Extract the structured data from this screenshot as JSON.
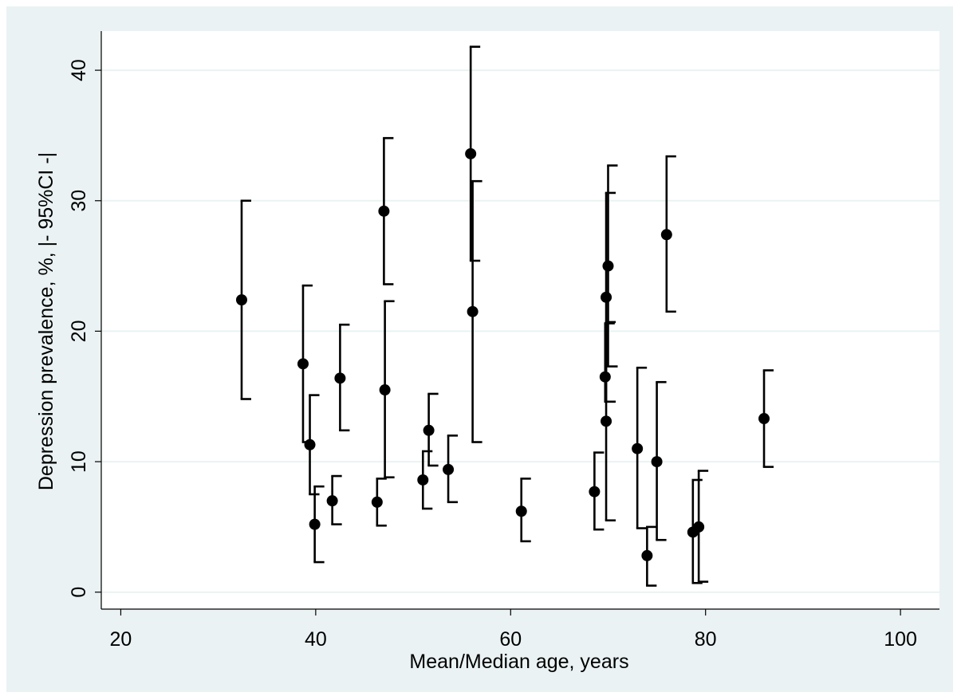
{
  "chart_data": {
    "type": "scatter",
    "title": "",
    "xlabel": "Mean/Median age, years",
    "ylabel": "Depression prevalence, %, |- 95%CI -|",
    "xlim": [
      18,
      104
    ],
    "ylim": [
      -1.3,
      43
    ],
    "x_ticks": [
      20,
      40,
      60,
      80,
      100
    ],
    "y_ticks": [
      0,
      10,
      20,
      30,
      40
    ],
    "x_tick_labels": [
      "20",
      "40",
      "60",
      "80",
      "100"
    ],
    "y_tick_labels": [
      "0",
      "10",
      "20",
      "30",
      "40"
    ],
    "grid": "horizontal",
    "legend": "none",
    "colors": {
      "background_outer": "#eaf2f3",
      "plot_area": "#ffffff",
      "gridline": "#eaf2f3",
      "marker": "#000000"
    },
    "points": [
      {
        "x": 32.4,
        "y": 22.4,
        "lo": 14.8,
        "hi": 30.0
      },
      {
        "x": 38.7,
        "y": 17.5,
        "lo": 11.5,
        "hi": 23.5
      },
      {
        "x": 39.4,
        "y": 11.3,
        "lo": 7.5,
        "hi": 15.1
      },
      {
        "x": 39.9,
        "y": 5.2,
        "lo": 2.3,
        "hi": 8.1
      },
      {
        "x": 41.7,
        "y": 7.0,
        "lo": 5.2,
        "hi": 8.9
      },
      {
        "x": 42.5,
        "y": 16.4,
        "lo": 12.4,
        "hi": 20.5
      },
      {
        "x": 46.3,
        "y": 6.9,
        "lo": 5.1,
        "hi": 8.7
      },
      {
        "x": 47.0,
        "y": 29.2,
        "lo": 23.6,
        "hi": 34.8
      },
      {
        "x": 47.1,
        "y": 15.5,
        "lo": 8.8,
        "hi": 22.3
      },
      {
        "x": 51.0,
        "y": 8.6,
        "lo": 6.4,
        "hi": 10.8
      },
      {
        "x": 51.6,
        "y": 12.4,
        "lo": 9.7,
        "hi": 15.2
      },
      {
        "x": 53.6,
        "y": 9.4,
        "lo": 6.9,
        "hi": 12.0
      },
      {
        "x": 55.9,
        "y": 33.6,
        "lo": 25.4,
        "hi": 41.8
      },
      {
        "x": 56.1,
        "y": 21.5,
        "lo": 11.5,
        "hi": 31.5
      },
      {
        "x": 61.1,
        "y": 6.2,
        "lo": 3.9,
        "hi": 8.7
      },
      {
        "x": 68.6,
        "y": 7.7,
        "lo": 4.8,
        "hi": 10.7
      },
      {
        "x": 69.7,
        "y": 16.5,
        "lo": 14.6,
        "hi": 20.6
      },
      {
        "x": 69.8,
        "y": 22.6,
        "lo": 14.6,
        "hi": 30.6
      },
      {
        "x": 69.8,
        "y": 13.1,
        "lo": 5.5,
        "hi": 20.7
      },
      {
        "x": 70.0,
        "y": 25.0,
        "lo": 17.3,
        "hi": 32.7
      },
      {
        "x": 73.0,
        "y": 11.0,
        "lo": 4.9,
        "hi": 17.2
      },
      {
        "x": 74.0,
        "y": 2.8,
        "lo": 0.5,
        "hi": 5.0
      },
      {
        "x": 75.0,
        "y": 10.0,
        "lo": 4.0,
        "hi": 16.1
      },
      {
        "x": 76.0,
        "y": 27.4,
        "lo": 21.5,
        "hi": 33.4
      },
      {
        "x": 78.7,
        "y": 4.6,
        "lo": 0.7,
        "hi": 8.6
      },
      {
        "x": 79.3,
        "y": 5.0,
        "lo": 0.8,
        "hi": 9.3
      },
      {
        "x": 86.0,
        "y": 13.3,
        "lo": 9.6,
        "hi": 17.0
      }
    ]
  }
}
